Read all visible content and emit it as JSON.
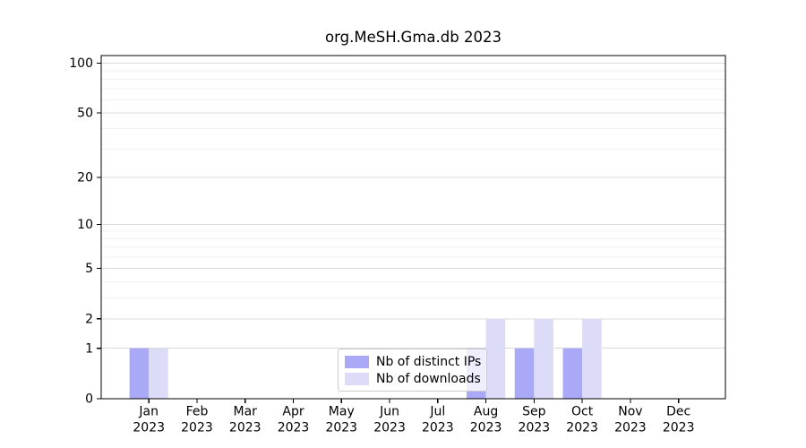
{
  "chart_data": {
    "type": "bar",
    "title": "org.MeSH.Gma.db 2023",
    "categories": [
      "Jan 2023",
      "Feb 2023",
      "Mar 2023",
      "Apr 2023",
      "May 2023",
      "Jun 2023",
      "Jul 2023",
      "Aug 2023",
      "Sep 2023",
      "Oct 2023",
      "Nov 2023",
      "Dec 2023"
    ],
    "series": [
      {
        "name": "Nb of distinct IPs",
        "color": "#a9a9f7",
        "values": [
          1,
          0,
          0,
          0,
          0,
          0,
          0,
          1,
          1,
          1,
          0,
          0
        ]
      },
      {
        "name": "Nb of downloads",
        "color": "#dcdcf9",
        "values": [
          1,
          0,
          0,
          0,
          0,
          0,
          0,
          2,
          2,
          2,
          0,
          0
        ]
      }
    ],
    "xlabel": "",
    "ylabel": "",
    "yscale": "log1p",
    "ylim": [
      0,
      111
    ],
    "yticks": [
      0,
      1,
      2,
      5,
      10,
      20,
      50,
      100
    ],
    "minor_grid_values": [
      3,
      4,
      6,
      7,
      8,
      9,
      30,
      40,
      60,
      70,
      80,
      90
    ],
    "grid": true,
    "legend_position": "lower center, inside plot",
    "colors": {
      "axis": "#000000",
      "major_grid": "#dadada",
      "minor_grid": "#f1f1f1",
      "background": "#ffffff"
    }
  }
}
